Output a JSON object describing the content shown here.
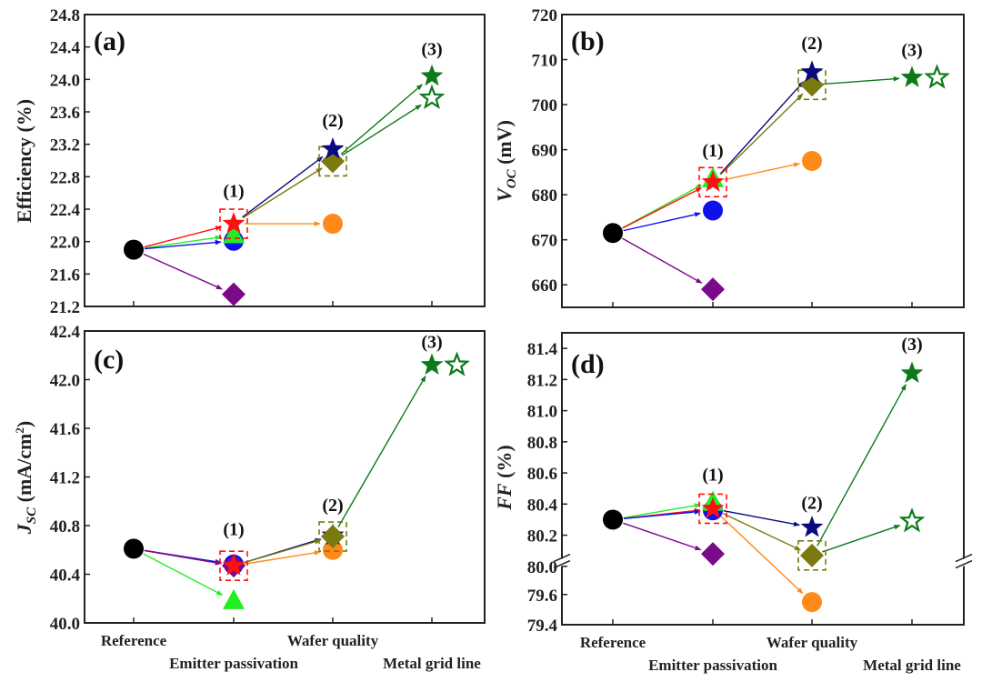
{
  "figure": {
    "categories": [
      "Reference",
      "Emitter passivation",
      "Wafer quality",
      "Metal grid line"
    ],
    "colors": {
      "black": "#000000",
      "red": "#ff1010",
      "green": "#22ee22",
      "blue": "#1010ee",
      "purple": "#7a0a8a",
      "orange": "#ff8a1a",
      "navy": "#0a0a80",
      "olive": "#7a7a10",
      "darkgreen": "#0a7a1a"
    }
  },
  "chart_data": [
    {
      "panel": "(a)",
      "type": "scatter",
      "title": "",
      "ylabel": "Efficiency (%)",
      "xlabel": "",
      "ylim": [
        21.2,
        24.8
      ],
      "yticks": [
        "21.2",
        "21.6",
        "22.0",
        "22.4",
        "22.8",
        "23.2",
        "23.6",
        "24.0",
        "24.4",
        "24.8"
      ],
      "show_category_labels": false,
      "stage_labels": [
        {
          "text": "(1)",
          "x": 1,
          "y": 22.55
        },
        {
          "text": "(2)",
          "x": 2,
          "y": 23.42
        },
        {
          "text": "(3)",
          "x": 3,
          "y": 24.3
        }
      ],
      "points": [
        {
          "id": "ref",
          "x": 0,
          "y": 21.9,
          "marker": "circle",
          "color": "black"
        },
        {
          "id": "p1-diamond",
          "x": 1,
          "y": 21.35,
          "marker": "diamond",
          "color": "purple"
        },
        {
          "id": "p1-circle",
          "x": 1,
          "y": 22.01,
          "marker": "circle",
          "color": "blue"
        },
        {
          "id": "p1-triangle",
          "x": 1,
          "y": 22.08,
          "marker": "triangle",
          "color": "green"
        },
        {
          "id": "p1-star",
          "x": 1,
          "y": 22.22,
          "marker": "star",
          "color": "red",
          "boxed": true
        },
        {
          "id": "p2-circle",
          "x": 2,
          "y": 22.22,
          "marker": "circle",
          "color": "orange"
        },
        {
          "id": "p2-diamond",
          "x": 2,
          "y": 22.99,
          "marker": "diamond",
          "color": "olive",
          "boxed": true
        },
        {
          "id": "p2-star",
          "x": 2,
          "y": 23.14,
          "marker": "star",
          "color": "navy"
        },
        {
          "id": "p3-star-filled",
          "x": 3,
          "y": 24.04,
          "marker": "star",
          "color": "darkgreen"
        },
        {
          "id": "p3-star-open",
          "x": 3,
          "y": 23.77,
          "marker": "star-open",
          "color": "darkgreen"
        }
      ],
      "arrows": [
        {
          "from": "ref",
          "to": "p1-star",
          "color": "red"
        },
        {
          "from": "ref",
          "to": "p1-triangle",
          "color": "green"
        },
        {
          "from": "ref",
          "to": "p1-circle",
          "color": "blue"
        },
        {
          "from": "ref",
          "to": "p1-diamond",
          "color": "purple"
        },
        {
          "from": "p1-star",
          "to": "p2-star",
          "color": "navy"
        },
        {
          "from": "p1-star",
          "to": "p2-diamond",
          "color": "olive"
        },
        {
          "from": "p1-star",
          "to": "p2-circle",
          "color": "orange"
        },
        {
          "from": "p2-diamond",
          "to": "p3-star-filled",
          "color": "darkgreen"
        },
        {
          "from": "p2-diamond",
          "to": "p3-star-open",
          "color": "darkgreen"
        }
      ]
    },
    {
      "panel": "(b)",
      "type": "scatter",
      "title": "",
      "ylabel": "V_OC (mV)",
      "xlabel": "",
      "ylim": [
        655,
        720
      ],
      "yticks": [
        "660",
        "670",
        "680",
        "690",
        "700",
        "710",
        "720"
      ],
      "show_category_labels": false,
      "stage_labels": [
        {
          "text": "(1)",
          "x": 1,
          "y": 688.5
        },
        {
          "text": "(2)",
          "x": 2,
          "y": 712.3
        },
        {
          "text": "(3)",
          "x": 3,
          "y": 710.8
        }
      ],
      "points": [
        {
          "id": "ref",
          "x": 0,
          "y": 671.5,
          "marker": "circle",
          "color": "black"
        },
        {
          "id": "p1-diamond",
          "x": 1,
          "y": 659.0,
          "marker": "diamond",
          "color": "purple"
        },
        {
          "id": "p1-circle",
          "x": 1,
          "y": 676.5,
          "marker": "circle",
          "color": "blue"
        },
        {
          "id": "p1-triangle",
          "x": 1,
          "y": 683.5,
          "marker": "triangle",
          "color": "green"
        },
        {
          "id": "p1-star",
          "x": 1,
          "y": 682.8,
          "marker": "star",
          "color": "red",
          "boxed": true
        },
        {
          "id": "p2-circle",
          "x": 2,
          "y": 687.5,
          "marker": "circle",
          "color": "orange"
        },
        {
          "id": "p2-diamond",
          "x": 2,
          "y": 704.4,
          "marker": "diamond",
          "color": "olive",
          "boxed": true
        },
        {
          "id": "p2-star",
          "x": 2,
          "y": 707.2,
          "marker": "star",
          "color": "navy"
        },
        {
          "id": "p3-star-filled",
          "x": 3,
          "y": 706.0,
          "marker": "star",
          "color": "darkgreen"
        },
        {
          "id": "p3-star-open",
          "x": 3.25,
          "y": 706.0,
          "marker": "star-open",
          "color": "darkgreen"
        }
      ],
      "arrows": [
        {
          "from": "ref",
          "to": "p1-triangle",
          "color": "green"
        },
        {
          "from": "ref",
          "to": "p1-star",
          "color": "red"
        },
        {
          "from": "ref",
          "to": "p1-circle",
          "color": "blue"
        },
        {
          "from": "ref",
          "to": "p1-diamond",
          "color": "purple"
        },
        {
          "from": "p1-star",
          "to": "p2-star",
          "color": "navy"
        },
        {
          "from": "p1-star",
          "to": "p2-diamond",
          "color": "olive"
        },
        {
          "from": "p1-star",
          "to": "p2-circle",
          "color": "orange"
        },
        {
          "from": "p2-diamond",
          "to": "p3-star-filled",
          "color": "darkgreen"
        }
      ]
    },
    {
      "panel": "(c)",
      "type": "scatter",
      "title": "",
      "ylabel": "J_SC (mA/cm²)",
      "xlabel": "",
      "ylim": [
        40.0,
        42.4
      ],
      "yticks": [
        "40.0",
        "40.4",
        "40.8",
        "41.2",
        "41.6",
        "42.0",
        "42.4"
      ],
      "show_category_labels": true,
      "stage_labels": [
        {
          "text": "(1)",
          "x": 1,
          "y": 40.72
        },
        {
          "text": "(2)",
          "x": 2,
          "y": 40.92
        },
        {
          "text": "(3)",
          "x": 3,
          "y": 42.26
        }
      ],
      "points": [
        {
          "id": "ref",
          "x": 0,
          "y": 40.61,
          "marker": "circle",
          "color": "black"
        },
        {
          "id": "p1-triangle",
          "x": 1,
          "y": 40.18,
          "marker": "triangle",
          "color": "green"
        },
        {
          "id": "p1-circle",
          "x": 1,
          "y": 40.48,
          "marker": "circle",
          "color": "blue"
        },
        {
          "id": "p1-diamond",
          "x": 1,
          "y": 40.47,
          "marker": "diamond",
          "color": "purple"
        },
        {
          "id": "p1-star",
          "x": 1,
          "y": 40.47,
          "marker": "star",
          "color": "red",
          "boxed": true
        },
        {
          "id": "p2-circle",
          "x": 2,
          "y": 40.6,
          "marker": "circle",
          "color": "orange"
        },
        {
          "id": "p2-star",
          "x": 2,
          "y": 40.72,
          "marker": "star",
          "color": "navy"
        },
        {
          "id": "p2-diamond",
          "x": 2,
          "y": 40.71,
          "marker": "diamond",
          "color": "olive",
          "boxed": true
        },
        {
          "id": "p3-star-filled",
          "x": 3,
          "y": 42.12,
          "marker": "star",
          "color": "darkgreen"
        },
        {
          "id": "p3-star-open",
          "x": 3.25,
          "y": 42.12,
          "marker": "star-open",
          "color": "darkgreen"
        }
      ],
      "arrows": [
        {
          "from": "ref",
          "to": "p1-circle",
          "color": "blue"
        },
        {
          "from": "ref",
          "to": "p1-star",
          "color": "red"
        },
        {
          "from": "ref",
          "to": "p1-diamond",
          "color": "purple"
        },
        {
          "from": "ref",
          "to": "p1-triangle",
          "color": "green"
        },
        {
          "from": "p1-star",
          "to": "p2-star",
          "color": "navy"
        },
        {
          "from": "p1-star",
          "to": "p2-diamond",
          "color": "olive"
        },
        {
          "from": "p1-star",
          "to": "p2-circle",
          "color": "orange"
        },
        {
          "from": "p2-diamond",
          "to": "p3-star-filled",
          "color": "darkgreen"
        }
      ]
    },
    {
      "panel": "(d)",
      "type": "scatter",
      "title": "",
      "ylabel": "FF (%)",
      "xlabel": "",
      "ylim": [
        79.4,
        81.5
      ],
      "axis_break": {
        "lower_segment": [
          79.4,
          79.6
        ],
        "upper_segment": [
          80.0,
          81.5
        ],
        "break_between": [
          79.6,
          80.0
        ]
      },
      "yticks": [
        "79.4",
        "79.6",
        "80.0",
        "80.2",
        "80.4",
        "80.6",
        "80.8",
        "81.0",
        "81.2",
        "81.4"
      ],
      "show_category_labels": true,
      "stage_labels": [
        {
          "text": "(1)",
          "x": 1,
          "y": 80.55
        },
        {
          "text": "(2)",
          "x": 2,
          "y": 80.37
        },
        {
          "text": "(3)",
          "x": 3,
          "y": 81.39
        }
      ],
      "points": [
        {
          "id": "ref",
          "x": 0,
          "y": 80.3,
          "marker": "circle",
          "color": "black"
        },
        {
          "id": "p1-diamond",
          "x": 1,
          "y": 80.08,
          "marker": "diamond",
          "color": "purple"
        },
        {
          "id": "p1-circle",
          "x": 1,
          "y": 80.36,
          "marker": "circle",
          "color": "blue"
        },
        {
          "id": "p1-triangle",
          "x": 1,
          "y": 80.41,
          "marker": "triangle",
          "color": "green"
        },
        {
          "id": "p1-star",
          "x": 1,
          "y": 80.37,
          "marker": "star",
          "color": "red",
          "boxed": true
        },
        {
          "id": "p2-star",
          "x": 2,
          "y": 80.25,
          "marker": "star",
          "color": "navy"
        },
        {
          "id": "p2-diamond",
          "x": 2,
          "y": 80.07,
          "marker": "diamond",
          "color": "olive",
          "boxed": true
        },
        {
          "id": "p2-circle",
          "x": 2,
          "y": 79.55,
          "marker": "circle",
          "color": "orange"
        },
        {
          "id": "p3-star-filled",
          "x": 3,
          "y": 81.24,
          "marker": "star",
          "color": "darkgreen"
        },
        {
          "id": "p3-star-open",
          "x": 3,
          "y": 80.29,
          "marker": "star-open",
          "color": "darkgreen"
        }
      ],
      "arrows": [
        {
          "from": "ref",
          "to": "p1-triangle",
          "color": "green"
        },
        {
          "from": "ref",
          "to": "p1-star",
          "color": "red"
        },
        {
          "from": "ref",
          "to": "p1-circle",
          "color": "blue"
        },
        {
          "from": "ref",
          "to": "p1-diamond",
          "color": "purple"
        },
        {
          "from": "p1-star",
          "to": "p2-star",
          "color": "navy"
        },
        {
          "from": "p1-star",
          "to": "p2-diamond",
          "color": "olive"
        },
        {
          "from": "p1-star",
          "to": "p2-circle",
          "color": "orange"
        },
        {
          "from": "p2-diamond",
          "to": "p3-star-filled",
          "color": "darkgreen"
        },
        {
          "from": "p2-diamond",
          "to": "p3-star-open",
          "color": "darkgreen"
        }
      ]
    }
  ]
}
